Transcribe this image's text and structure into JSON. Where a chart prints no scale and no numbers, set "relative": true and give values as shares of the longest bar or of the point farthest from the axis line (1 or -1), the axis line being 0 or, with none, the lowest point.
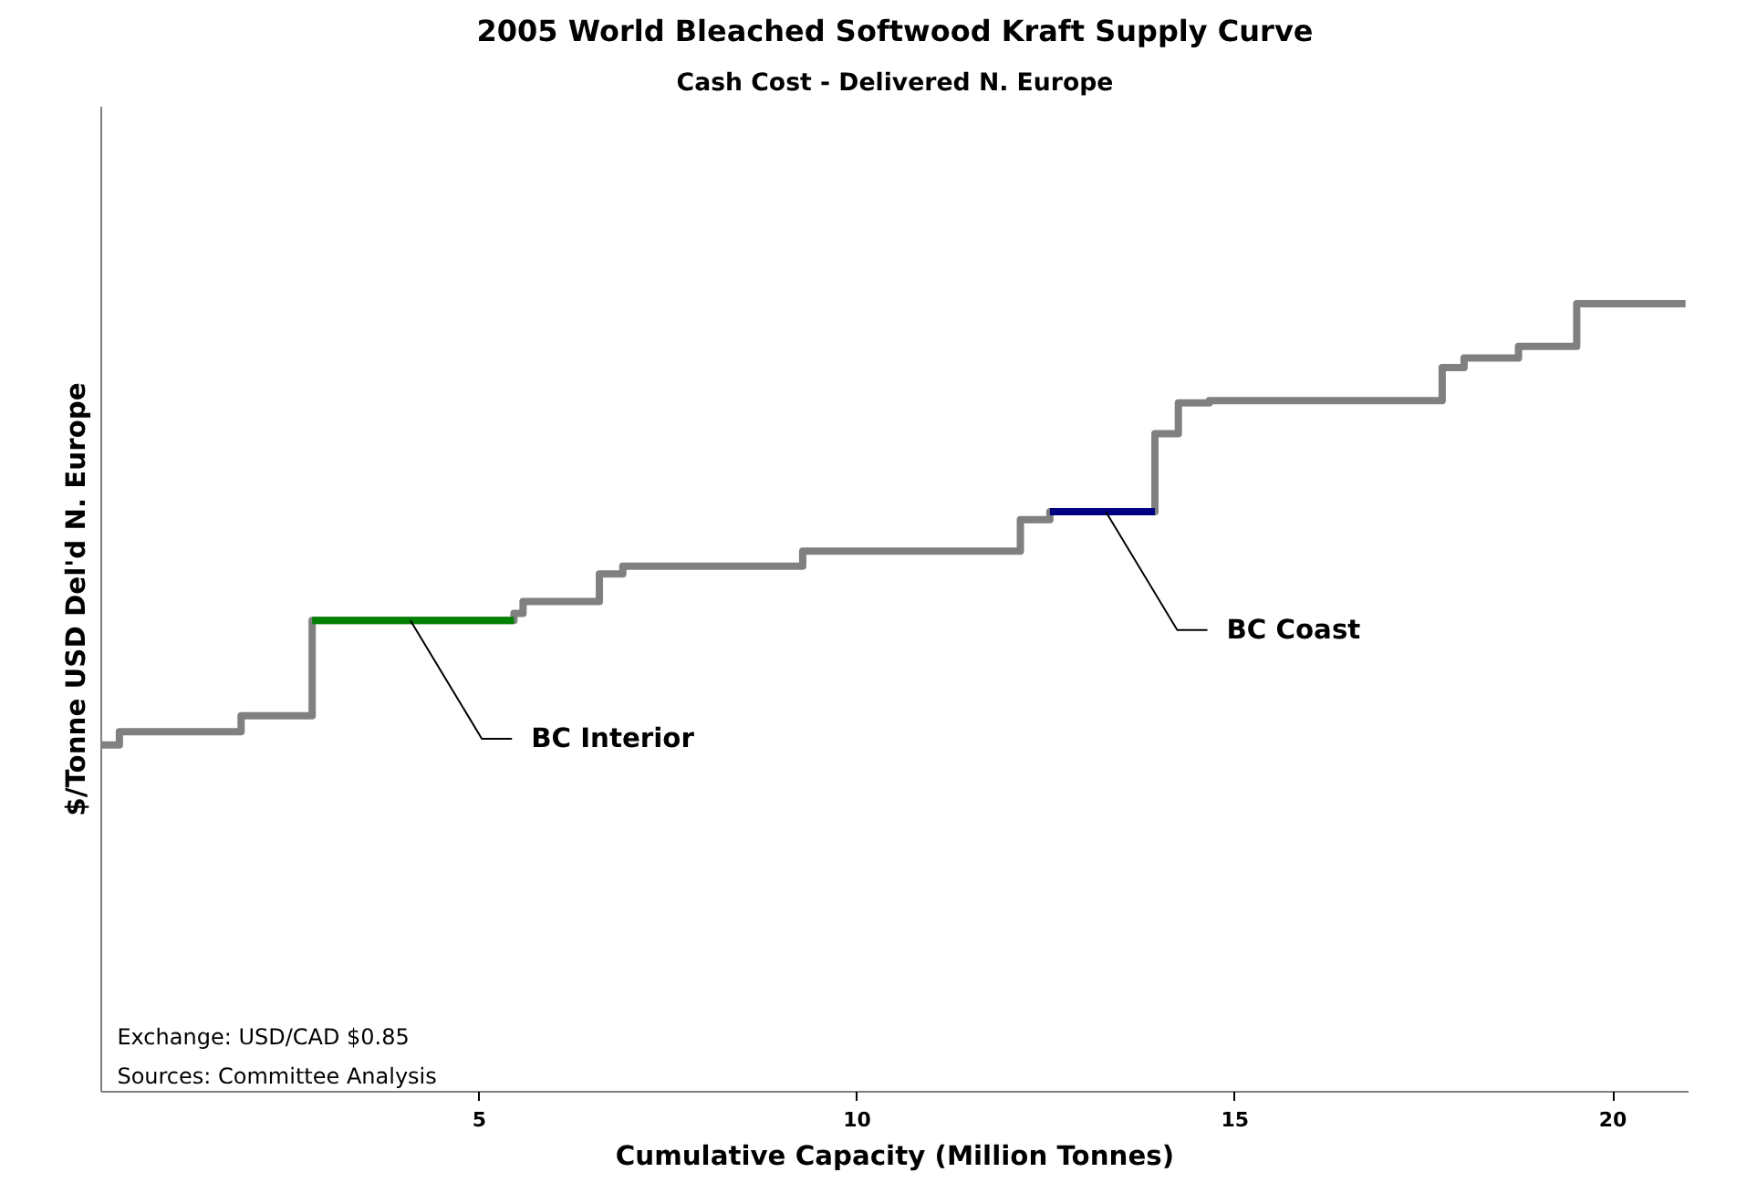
{
  "chart_data": {
    "type": "step",
    "title": "2005 World Bleached Softwood Kraft Supply Curve",
    "subtitle": "Cash Cost - Delivered N. Europe",
    "xlabel": "Cumulative Capacity (Million Tonnes)",
    "ylabel": "$/Tonne USD Del'd N. Europe",
    "relative": true,
    "xlim": [
      0,
      21
    ],
    "xticks": [
      5,
      10,
      15,
      20
    ],
    "grid": false,
    "line_style": "solid",
    "marker": "none",
    "series": [
      {
        "color": "#808080",
        "x": [
          0,
          0.24,
          1.85,
          2.79,
          5.46,
          5.58,
          6.59,
          6.9,
          9.28,
          12.16,
          12.55,
          13.94,
          14.25,
          14.66,
          17.74,
          18.03,
          18.75,
          19.52,
          20.96
        ],
        "values": [
          0.44,
          0.457,
          0.477,
          0.598,
          0.607,
          0.622,
          0.657,
          0.667,
          0.686,
          0.726,
          0.736,
          0.835,
          0.874,
          0.877,
          0.919,
          0.931,
          0.946,
          1.0,
          1.0
        ]
      },
      {
        "color": "#008000",
        "x": [
          2.79,
          5.46
        ],
        "values": [
          0.598,
          0.598
        ]
      },
      {
        "color": "#000080",
        "x": [
          12.55,
          13.94
        ],
        "values": [
          0.736,
          0.736
        ]
      }
    ],
    "annotations": [
      {
        "text": "BC Interior",
        "x": 4.09,
        "y": 0.598
      },
      {
        "text": "BC Coast",
        "x": 13.29,
        "y": 0.736
      },
      "Exchange: USD/CAD $0.85",
      "Sources: Committee Analysis"
    ]
  }
}
